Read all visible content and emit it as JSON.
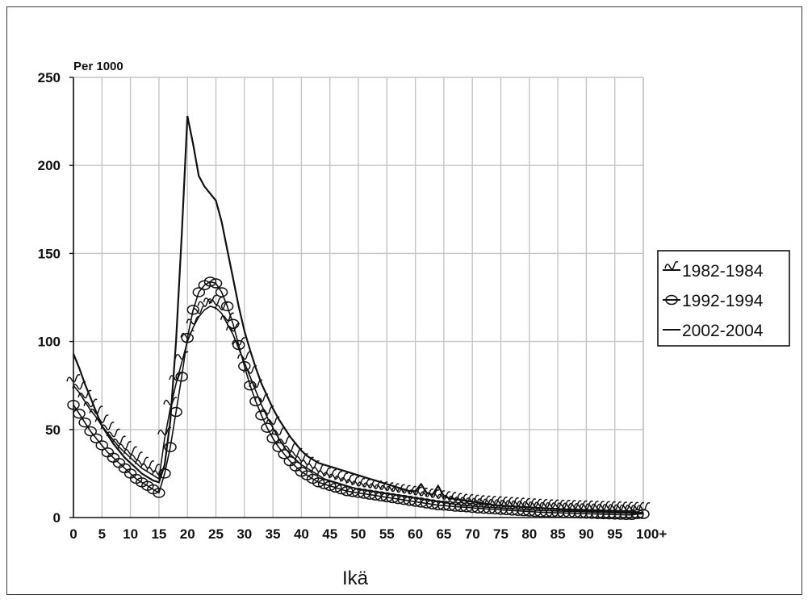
{
  "chart_data": {
    "type": "line",
    "ylabel": "Per 1000",
    "xlabel": "Ikä",
    "xlim": [
      0,
      100
    ],
    "ylim": [
      0,
      250
    ],
    "x_ticks": [
      "0",
      "5",
      "10",
      "15",
      "20",
      "25",
      "30",
      "35",
      "40",
      "45",
      "50",
      "55",
      "60",
      "65",
      "70",
      "75",
      "80",
      "85",
      "90",
      "95",
      "100+"
    ],
    "y_ticks": [
      "0",
      "50",
      "100",
      "150",
      "200",
      "250"
    ],
    "grid": true,
    "legend_position": "right",
    "series": [
      {
        "name": "1982-1984",
        "marker": "wave",
        "color": "#111111",
        "x": [
          0,
          1,
          2,
          3,
          4,
          5,
          6,
          7,
          8,
          9,
          10,
          11,
          12,
          13,
          14,
          15,
          16,
          17,
          18,
          19,
          20,
          21,
          22,
          23,
          24,
          25,
          26,
          27,
          28,
          29,
          30,
          31,
          32,
          33,
          34,
          35,
          36,
          37,
          38,
          39,
          40,
          41,
          42,
          43,
          44,
          45,
          46,
          47,
          48,
          49,
          50,
          51,
          52,
          53,
          54,
          55,
          56,
          57,
          58,
          59,
          60,
          61,
          62,
          63,
          64,
          65,
          66,
          67,
          68,
          69,
          70,
          71,
          72,
          73,
          74,
          75,
          76,
          77,
          78,
          79,
          80,
          81,
          82,
          83,
          84,
          85,
          86,
          87,
          88,
          89,
          90,
          91,
          92,
          93,
          94,
          95,
          96,
          97,
          98,
          99,
          100
        ],
        "y": [
          75,
          71,
          66,
          61,
          57,
          52,
          48,
          44,
          40,
          37,
          34,
          31,
          28,
          26,
          24,
          22,
          45,
          62,
          76,
          88,
          100,
          108,
          114,
          118,
          120,
          119,
          116,
          110,
          104,
          96,
          88,
          80,
          72,
          64,
          57,
          51,
          45,
          40,
          36,
          33,
          30,
          28,
          26,
          24,
          22,
          21,
          20,
          19,
          18,
          17,
          16,
          15.5,
          15,
          14.5,
          14,
          13.5,
          13,
          12.5,
          12,
          11.5,
          11,
          10.5,
          10,
          9.5,
          9,
          8.5,
          8,
          7.5,
          7,
          6.8,
          6.5,
          6.2,
          6,
          5.8,
          5.6,
          5.4,
          5.2,
          5,
          4.8,
          4.6,
          4.4,
          4.2,
          4,
          3.9,
          3.8,
          3.7,
          3.6,
          3.5,
          3.4,
          3.3,
          3.2,
          3.1,
          3,
          2.9,
          2.8,
          2.7,
          2.6,
          2.5,
          2.4,
          2.3,
          2.2
        ]
      },
      {
        "name": "1992-1994",
        "marker": "circle",
        "color": "#111111",
        "x": [
          0,
          1,
          2,
          3,
          4,
          5,
          6,
          7,
          8,
          9,
          10,
          11,
          12,
          13,
          14,
          15,
          16,
          17,
          18,
          19,
          20,
          21,
          22,
          23,
          24,
          25,
          26,
          27,
          28,
          29,
          30,
          31,
          32,
          33,
          34,
          35,
          36,
          37,
          38,
          39,
          40,
          41,
          42,
          43,
          44,
          45,
          46,
          47,
          48,
          49,
          50,
          51,
          52,
          53,
          54,
          55,
          56,
          57,
          58,
          59,
          60,
          61,
          62,
          63,
          64,
          65,
          66,
          67,
          68,
          69,
          70,
          71,
          72,
          73,
          74,
          75,
          76,
          77,
          78,
          79,
          80,
          81,
          82,
          83,
          84,
          85,
          86,
          87,
          88,
          89,
          90,
          91,
          92,
          93,
          94,
          95,
          96,
          97,
          98,
          99,
          100
        ],
        "y": [
          64,
          59,
          54,
          49,
          45,
          41,
          37,
          34,
          31,
          28,
          25,
          22,
          20,
          18,
          16,
          14,
          25,
          40,
          60,
          80,
          102,
          118,
          128,
          132,
          134,
          133,
          128,
          120,
          110,
          98,
          86,
          75,
          66,
          58,
          51,
          45,
          40,
          36,
          32,
          29,
          26,
          24,
          22,
          20,
          19,
          18,
          17,
          16,
          15,
          14.5,
          14,
          13.5,
          13,
          12.5,
          12,
          11.5,
          11,
          10.5,
          10,
          9.5,
          9,
          8.5,
          8,
          7.5,
          7,
          6.8,
          6.5,
          6.2,
          6,
          5.8,
          5.5,
          5.2,
          5,
          4.8,
          4.6,
          4.4,
          4.2,
          4,
          3.8,
          3.6,
          3.4,
          3.2,
          3,
          2.9,
          2.8,
          2.7,
          2.6,
          2.5,
          2.4,
          2.3,
          2.2,
          2.1,
          2,
          1.9,
          1.8,
          1.7,
          1.6,
          1.5,
          1.5,
          2,
          2
        ]
      },
      {
        "name": "2002-2004",
        "marker": "none",
        "color": "#111111",
        "x": [
          0,
          1,
          2,
          3,
          4,
          5,
          6,
          7,
          8,
          9,
          10,
          11,
          12,
          13,
          14,
          15,
          16,
          17,
          18,
          19,
          20,
          21,
          22,
          23,
          24,
          25,
          26,
          27,
          28,
          29,
          30,
          31,
          32,
          33,
          34,
          35,
          36,
          37,
          38,
          39,
          40,
          41,
          42,
          43,
          44,
          45,
          46,
          47,
          48,
          49,
          50,
          51,
          52,
          53,
          54,
          55,
          56,
          57,
          58,
          59,
          60,
          61,
          62,
          63,
          64,
          65,
          66,
          67,
          68,
          69,
          70,
          71,
          72,
          73,
          74,
          75,
          76,
          77,
          78,
          79,
          80,
          81,
          82,
          83,
          84,
          85,
          86,
          87,
          88,
          89,
          90,
          91,
          92,
          93,
          94,
          95,
          96,
          97,
          98,
          99,
          100
        ],
        "y": [
          93,
          85,
          76,
          68,
          60,
          52,
          47,
          42,
          38,
          34,
          31,
          28,
          25,
          23,
          21,
          20,
          30,
          55,
          100,
          160,
          228,
          212,
          194,
          188,
          184,
          180,
          168,
          152,
          136,
          120,
          106,
          95,
          85,
          76,
          69,
          62,
          56,
          51,
          46,
          42,
          38,
          35,
          33,
          31,
          30,
          29,
          28,
          27,
          26,
          25,
          24,
          23,
          22,
          21,
          20,
          19,
          18,
          17,
          16,
          15,
          15,
          19,
          14,
          13,
          18,
          12,
          11,
          10.5,
          10,
          9.5,
          9,
          8.5,
          8,
          7.5,
          7,
          6.8,
          6.6,
          6.4,
          6.2,
          6,
          5.8,
          5.6,
          5.4,
          5.2,
          5,
          4.8,
          4.6,
          4.4,
          4.2,
          4,
          3.9,
          3.8,
          3.7,
          3.6,
          3.5,
          3.4,
          3.3,
          3.2,
          3.1,
          3,
          2.5
        ]
      }
    ]
  }
}
